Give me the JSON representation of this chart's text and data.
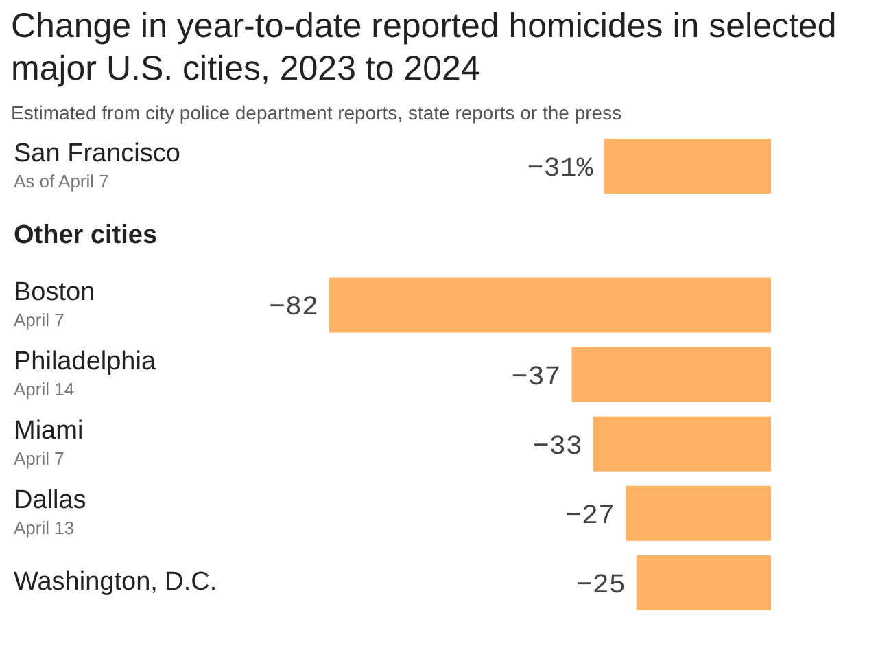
{
  "chart_data": {
    "type": "bar",
    "orientation": "horizontal",
    "title": "Change in year-to-date reported homicides in selected major U.S. cities, 2023 to 2024",
    "subtitle": "Estimated from city police department reports, state reports or the press",
    "categories": [
      "San Francisco\nAs of April 7",
      "Other cities",
      "Boston\nApril 7",
      "Philadelphia\nApril 14",
      "Miami\nApril 7",
      "Dallas\nApril 13",
      "Washington, D.C."
    ],
    "values": [
      -31,
      null,
      -82,
      -37,
      -33,
      -27,
      -25
    ],
    "value_labels": [
      "−31%",
      null,
      "−82",
      "−37",
      "−33",
      "−27",
      "−25"
    ],
    "color": "#fdb264",
    "tick_labels": false
  }
}
